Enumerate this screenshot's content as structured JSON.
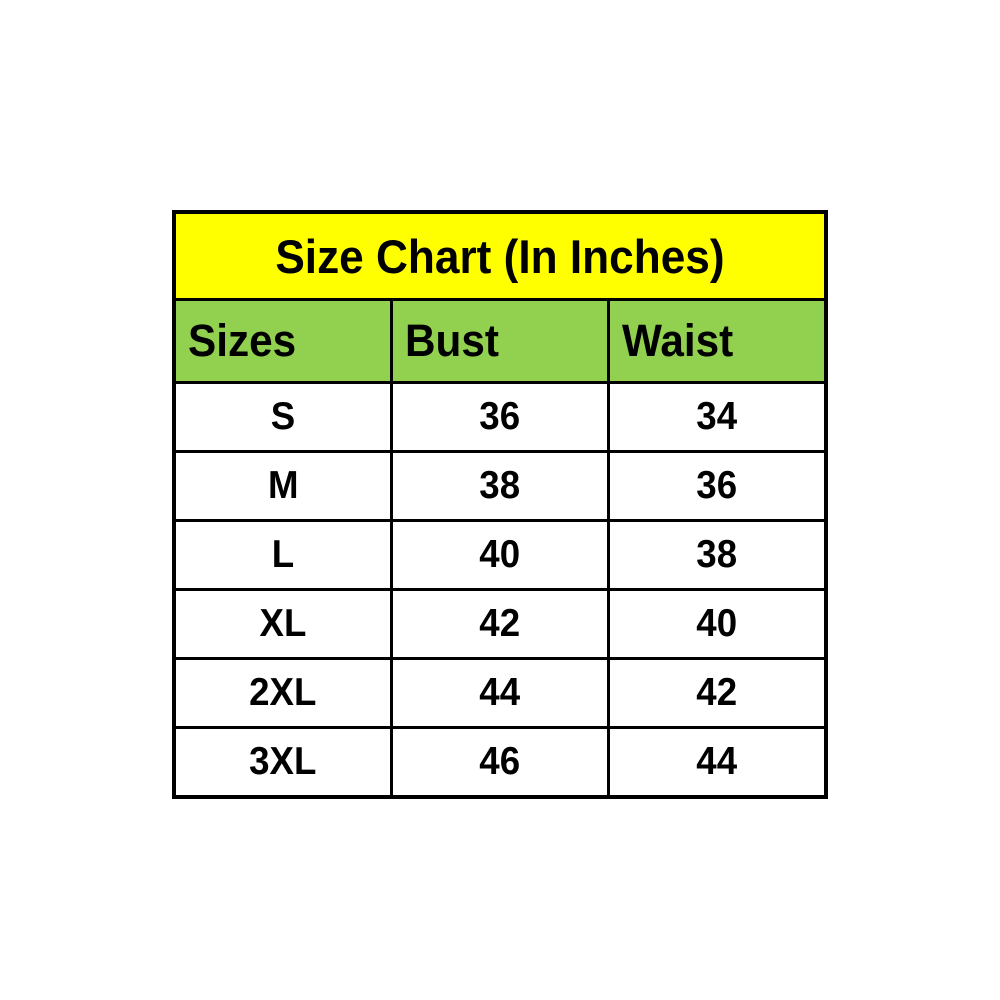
{
  "chart_data": {
    "type": "table",
    "title": "Size Chart (In Inches)",
    "columns": [
      "Sizes",
      "Bust",
      "Waist"
    ],
    "rows": [
      [
        "S",
        "36",
        "34"
      ],
      [
        "M",
        "38",
        "36"
      ],
      [
        "L",
        "40",
        "38"
      ],
      [
        "XL",
        "42",
        "40"
      ],
      [
        "2XL",
        "44",
        "42"
      ],
      [
        "3XL",
        "46",
        "44"
      ]
    ]
  },
  "table": {
    "title": "Size Chart (In Inches)",
    "headers": {
      "sizes": "Sizes",
      "bust": "Bust",
      "waist": "Waist"
    },
    "rows": [
      {
        "size": "S",
        "bust": "36",
        "waist": "34"
      },
      {
        "size": "M",
        "bust": "38",
        "waist": "36"
      },
      {
        "size": "L",
        "bust": "40",
        "waist": "38"
      },
      {
        "size": "XL",
        "bust": "42",
        "waist": "40"
      },
      {
        "size": "2XL",
        "bust": "44",
        "waist": "42"
      },
      {
        "size": "3XL",
        "bust": "46",
        "waist": "44"
      }
    ],
    "colors": {
      "title_background": "#FFFF00",
      "header_background": "#92D050",
      "row_background": "#FFFFFF",
      "border": "#000000",
      "text": "#000000"
    }
  }
}
